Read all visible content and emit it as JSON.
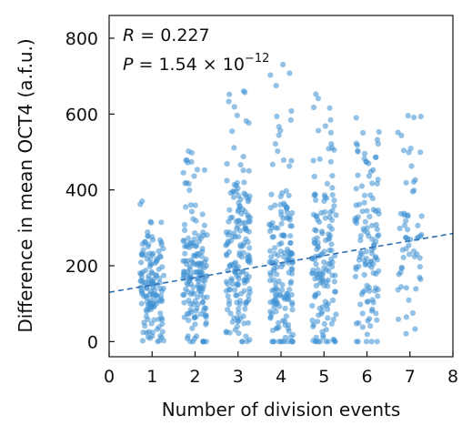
{
  "chart_data": {
    "type": "scatter",
    "xlabel": "Number of division events",
    "ylabel": "Difference in mean OCT4 (a.f.u.)",
    "xlim": [
      0,
      8
    ],
    "ylim": [
      -40,
      860
    ],
    "xticks": [
      0,
      1,
      2,
      3,
      4,
      5,
      6,
      7,
      8
    ],
    "yticks": [
      0,
      200,
      400,
      600,
      800
    ],
    "grid": false,
    "point_color": "#3d8fd1",
    "trend_color": "#2f6fb5",
    "annotations": {
      "r_symbol": "R",
      "r_value": " = 0.227",
      "p_symbol": "P",
      "p_value": " = 1.54 × 10",
      "p_exponent": "−12"
    },
    "trend_line": {
      "style": "dashed",
      "x": [
        0,
        8
      ],
      "y": [
        130,
        285
      ]
    },
    "series": [
      {
        "groups": [
          {
            "division_events": 1,
            "n": 140,
            "y_center": 135,
            "y_spread": 95,
            "y_max": 380,
            "x_jitter": 0.28
          },
          {
            "division_events": 2,
            "n": 165,
            "y_center": 165,
            "y_spread": 130,
            "y_max": 530,
            "x_jitter": 0.28
          },
          {
            "division_events": 3,
            "n": 175,
            "y_center": 200,
            "y_spread": 155,
            "y_max": 665,
            "x_jitter": 0.28
          },
          {
            "division_events": 4,
            "n": 170,
            "y_center": 200,
            "y_spread": 160,
            "y_max": 740,
            "x_jitter": 0.28
          },
          {
            "division_events": 5,
            "n": 150,
            "y_center": 205,
            "y_spread": 160,
            "y_max": 660,
            "x_jitter": 0.28
          },
          {
            "division_events": 6,
            "n": 120,
            "y_center": 230,
            "y_spread": 175,
            "y_max": 685,
            "x_jitter": 0.28
          },
          {
            "division_events": 7,
            "n": 60,
            "y_center": 260,
            "y_spread": 150,
            "y_max": 605,
            "x_jitter": 0.28
          }
        ]
      }
    ]
  }
}
